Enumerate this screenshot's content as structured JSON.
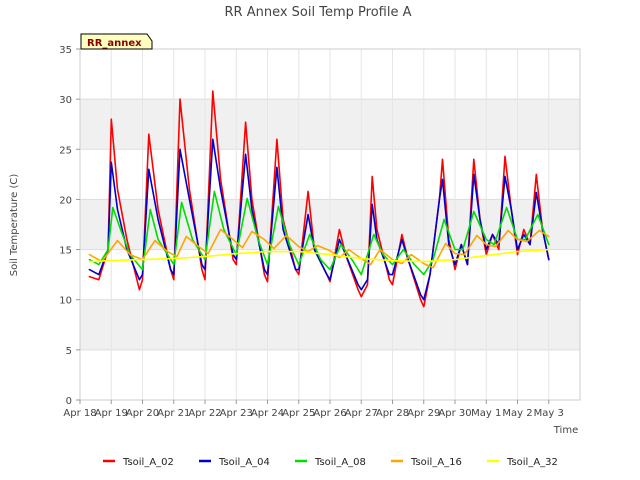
{
  "chart_data": {
    "type": "line",
    "title": "RR Annex Soil Temp Profile A",
    "xlabel": "Time",
    "ylabel": "Soil Temperature (C)",
    "site_tag": "RR_annex",
    "ylim": [
      0,
      35
    ],
    "yticks": [
      0,
      5,
      10,
      15,
      20,
      25,
      30,
      35
    ],
    "xlim_days": [
      0,
      16
    ],
    "xtick_labels": [
      "Apr 18",
      "Apr 19",
      "Apr 20",
      "Apr 21",
      "Apr 22",
      "Apr 23",
      "Apr 24",
      "Apr 25",
      "Apr 26",
      "Apr 27",
      "Apr 28",
      "Apr 29",
      "Apr 30",
      "May 1",
      "May 2",
      "May 3"
    ],
    "grid": true,
    "legend_position": "bottom",
    "series": [
      {
        "name": "Tsoil_A_02",
        "color": "#ff0000",
        "values": [
          [
            0.3,
            12.3
          ],
          [
            0.6,
            12
          ],
          [
            0.9,
            15
          ],
          [
            1.0,
            28
          ],
          [
            1.2,
            21
          ],
          [
            1.5,
            16
          ],
          [
            1.9,
            11
          ],
          [
            2.0,
            12
          ],
          [
            2.2,
            26.5
          ],
          [
            2.5,
            19
          ],
          [
            2.9,
            13
          ],
          [
            3.0,
            12
          ],
          [
            3.2,
            30
          ],
          [
            3.5,
            21
          ],
          [
            3.9,
            13
          ],
          [
            4.0,
            12
          ],
          [
            4.25,
            30.8
          ],
          [
            4.5,
            22
          ],
          [
            4.9,
            14
          ],
          [
            5.0,
            13.5
          ],
          [
            5.3,
            27.7
          ],
          [
            5.5,
            20
          ],
          [
            5.9,
            12.5
          ],
          [
            6.0,
            11.8
          ],
          [
            6.3,
            26
          ],
          [
            6.5,
            18
          ],
          [
            6.9,
            13
          ],
          [
            7.0,
            12.5
          ],
          [
            7.3,
            20.8
          ],
          [
            7.5,
            15
          ],
          [
            7.9,
            12.5
          ],
          [
            8.0,
            11.8
          ],
          [
            8.3,
            17
          ],
          [
            8.5,
            14.5
          ],
          [
            8.9,
            11
          ],
          [
            9.0,
            10.3
          ],
          [
            9.2,
            11.5
          ],
          [
            9.35,
            22.3
          ],
          [
            9.5,
            17
          ],
          [
            9.9,
            12
          ],
          [
            10.0,
            11.5
          ],
          [
            10.3,
            16.5
          ],
          [
            10.5,
            14
          ],
          [
            10.9,
            10
          ],
          [
            11.0,
            9.3
          ],
          [
            11.2,
            12.5
          ],
          [
            11.5,
            20
          ],
          [
            11.6,
            24
          ],
          [
            11.8,
            16
          ],
          [
            12.0,
            13
          ],
          [
            12.2,
            15.5
          ],
          [
            12.4,
            13.5
          ],
          [
            12.6,
            24
          ],
          [
            12.8,
            18
          ],
          [
            13.0,
            14.5
          ],
          [
            13.2,
            16.5
          ],
          [
            13.4,
            15
          ],
          [
            13.6,
            24.3
          ],
          [
            13.8,
            19
          ],
          [
            14.0,
            14.5
          ],
          [
            14.2,
            17
          ],
          [
            14.4,
            15.5
          ],
          [
            14.6,
            22.5
          ],
          [
            14.8,
            17
          ],
          [
            15.0,
            14
          ]
        ]
      },
      {
        "name": "Tsoil_A_04",
        "color": "#0000cc",
        "values": [
          [
            0.3,
            13
          ],
          [
            0.6,
            12.5
          ],
          [
            0.9,
            15
          ],
          [
            1.0,
            23.7
          ],
          [
            1.2,
            19
          ],
          [
            1.5,
            15
          ],
          [
            1.9,
            12
          ],
          [
            2.0,
            12.5
          ],
          [
            2.2,
            23
          ],
          [
            2.5,
            18
          ],
          [
            2.9,
            13
          ],
          [
            3.0,
            12.5
          ],
          [
            3.2,
            25
          ],
          [
            3.5,
            20
          ],
          [
            3.9,
            13.5
          ],
          [
            4.0,
            13
          ],
          [
            4.25,
            26
          ],
          [
            4.5,
            21
          ],
          [
            4.9,
            14.5
          ],
          [
            5.0,
            14
          ],
          [
            5.3,
            24.5
          ],
          [
            5.5,
            19
          ],
          [
            5.9,
            13
          ],
          [
            6.0,
            12.5
          ],
          [
            6.3,
            23.2
          ],
          [
            6.5,
            17
          ],
          [
            6.9,
            13
          ],
          [
            7.0,
            13
          ],
          [
            7.3,
            18.5
          ],
          [
            7.5,
            15
          ],
          [
            7.9,
            12.5
          ],
          [
            8.0,
            12
          ],
          [
            8.3,
            16
          ],
          [
            8.5,
            14.5
          ],
          [
            8.9,
            11.5
          ],
          [
            9.0,
            11
          ],
          [
            9.2,
            12
          ],
          [
            9.35,
            19.5
          ],
          [
            9.5,
            16
          ],
          [
            9.9,
            12.5
          ],
          [
            10.0,
            12.5
          ],
          [
            10.3,
            16
          ],
          [
            10.5,
            14
          ],
          [
            10.9,
            10.5
          ],
          [
            11.0,
            10
          ],
          [
            11.2,
            12.5
          ],
          [
            11.5,
            20
          ],
          [
            11.6,
            22
          ],
          [
            11.8,
            15.5
          ],
          [
            12.0,
            13.5
          ],
          [
            12.2,
            15.5
          ],
          [
            12.4,
            13.5
          ],
          [
            12.6,
            22.5
          ],
          [
            12.8,
            18
          ],
          [
            13.0,
            15
          ],
          [
            13.2,
            16.5
          ],
          [
            13.4,
            15.5
          ],
          [
            13.6,
            22.3
          ],
          [
            13.8,
            19
          ],
          [
            14.0,
            15
          ],
          [
            14.2,
            16.5
          ],
          [
            14.4,
            15.5
          ],
          [
            14.6,
            20.7
          ],
          [
            14.8,
            17
          ],
          [
            15.0,
            14
          ]
        ]
      },
      {
        "name": "Tsoil_A_08",
        "color": "#00dd00",
        "values": [
          [
            0.3,
            14
          ],
          [
            0.6,
            13.5
          ],
          [
            0.9,
            15
          ],
          [
            1.05,
            19.2
          ],
          [
            1.3,
            17
          ],
          [
            1.6,
            14.5
          ],
          [
            2.0,
            13
          ],
          [
            2.25,
            19
          ],
          [
            2.5,
            16
          ],
          [
            3.0,
            13.5
          ],
          [
            3.25,
            19.7
          ],
          [
            3.6,
            16
          ],
          [
            4.0,
            14
          ],
          [
            4.3,
            20.8
          ],
          [
            4.6,
            17
          ],
          [
            5.0,
            14.5
          ],
          [
            5.35,
            20.1
          ],
          [
            5.7,
            16
          ],
          [
            6.0,
            13.5
          ],
          [
            6.35,
            19.3
          ],
          [
            6.7,
            15.5
          ],
          [
            7.0,
            13.5
          ],
          [
            7.35,
            16.5
          ],
          [
            7.7,
            14
          ],
          [
            8.0,
            13
          ],
          [
            8.35,
            15.5
          ],
          [
            8.7,
            14
          ],
          [
            9.0,
            12.5
          ],
          [
            9.4,
            16.5
          ],
          [
            9.7,
            14.5
          ],
          [
            10.0,
            13.5
          ],
          [
            10.35,
            15
          ],
          [
            10.7,
            13.5
          ],
          [
            11.0,
            12.5
          ],
          [
            11.3,
            14
          ],
          [
            11.65,
            18
          ],
          [
            12.0,
            15
          ],
          [
            12.25,
            15
          ],
          [
            12.6,
            18.8
          ],
          [
            13.0,
            16
          ],
          [
            13.25,
            15.5
          ],
          [
            13.65,
            19.2
          ],
          [
            14.0,
            16
          ],
          [
            14.25,
            16
          ],
          [
            14.65,
            18.5
          ],
          [
            15.0,
            15.5
          ]
        ]
      },
      {
        "name": "Tsoil_A_16",
        "color": "#ffa500",
        "values": [
          [
            0.3,
            14.5
          ],
          [
            0.7,
            13.8
          ],
          [
            1.2,
            15.9
          ],
          [
            1.6,
            14.5
          ],
          [
            2.0,
            14
          ],
          [
            2.4,
            15.9
          ],
          [
            2.8,
            14.8
          ],
          [
            3.1,
            14.3
          ],
          [
            3.4,
            16.3
          ],
          [
            3.8,
            15.3
          ],
          [
            4.1,
            14.6
          ],
          [
            4.5,
            17
          ],
          [
            4.9,
            16
          ],
          [
            5.2,
            15.2
          ],
          [
            5.5,
            16.8
          ],
          [
            5.9,
            16
          ],
          [
            6.2,
            15.1
          ],
          [
            6.6,
            16.4
          ],
          [
            7.0,
            15.3
          ],
          [
            7.3,
            14.8
          ],
          [
            7.6,
            15.4
          ],
          [
            8.0,
            14.9
          ],
          [
            8.3,
            14.2
          ],
          [
            8.6,
            15
          ],
          [
            9.0,
            14.1
          ],
          [
            9.3,
            13.5
          ],
          [
            9.6,
            15
          ],
          [
            10.0,
            14
          ],
          [
            10.3,
            13.6
          ],
          [
            10.6,
            14.5
          ],
          [
            11.0,
            13.6
          ],
          [
            11.3,
            13.2
          ],
          [
            11.7,
            15.6
          ],
          [
            12.0,
            14.6
          ],
          [
            12.3,
            14.5
          ],
          [
            12.7,
            16.4
          ],
          [
            13.0,
            15.5
          ],
          [
            13.3,
            15.3
          ],
          [
            13.7,
            16.9
          ],
          [
            14.0,
            16
          ],
          [
            14.3,
            15.8
          ],
          [
            14.7,
            16.9
          ],
          [
            15.0,
            16.3
          ]
        ]
      },
      {
        "name": "Tsoil_A_32",
        "color": "#ffff00",
        "values": [
          [
            0.3,
            13.8
          ],
          [
            1,
            13.9
          ],
          [
            2,
            14
          ],
          [
            3,
            14.1
          ],
          [
            4,
            14.3
          ],
          [
            5,
            14.6
          ],
          [
            6,
            14.8
          ],
          [
            7,
            14.8
          ],
          [
            8,
            14.5
          ],
          [
            9,
            14.1
          ],
          [
            10,
            13.9
          ],
          [
            11,
            13.8
          ],
          [
            12,
            14
          ],
          [
            13,
            14.4
          ],
          [
            14,
            14.8
          ],
          [
            15,
            15
          ]
        ]
      }
    ]
  }
}
